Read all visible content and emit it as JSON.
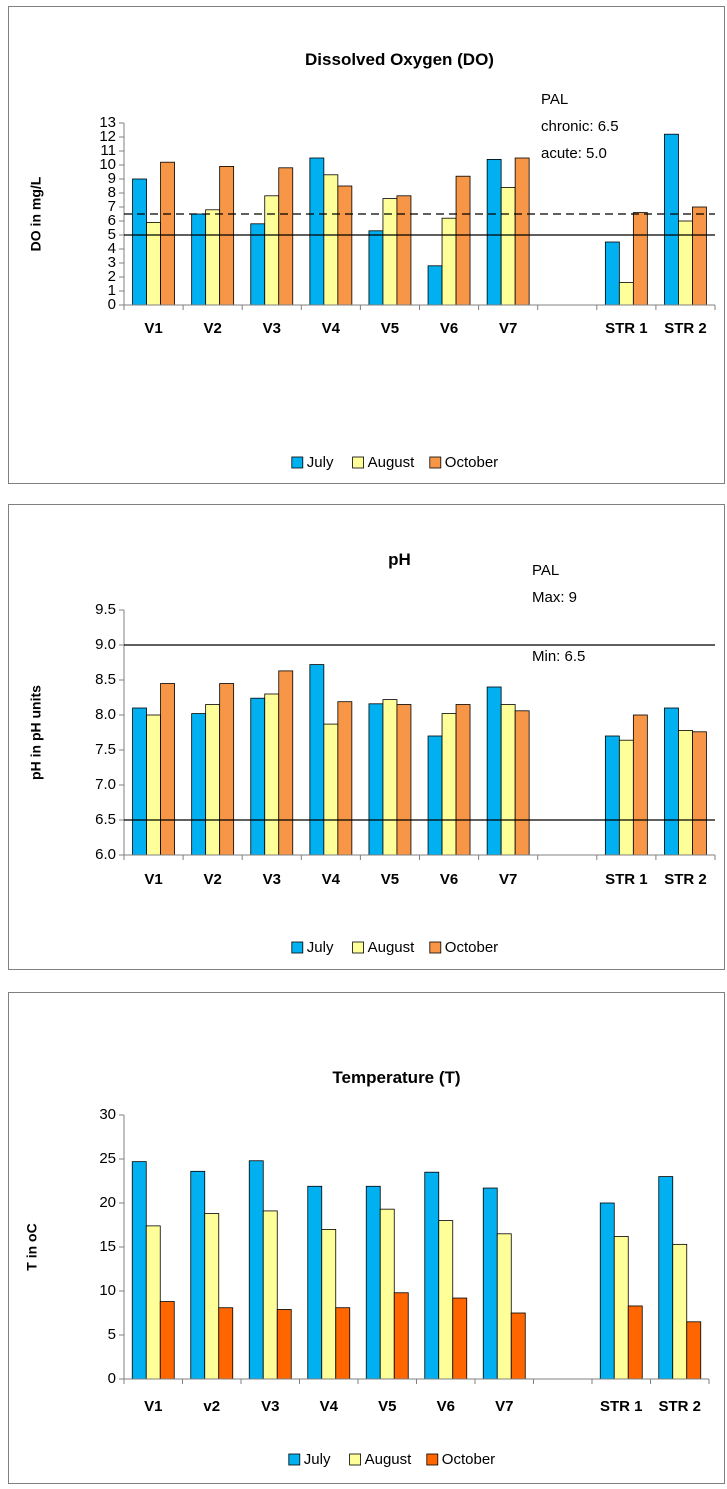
{
  "chart_data": [
    {
      "type": "bar",
      "title": "Dissolved Oxygen (DO)",
      "xlabel": "",
      "ylabel": "DO in mg/L",
      "categories": [
        "V1",
        "V2",
        "V3",
        "V4",
        "V5",
        "V6",
        "V7",
        "",
        "STR 1",
        "STR 2"
      ],
      "ylim": [
        0,
        13
      ],
      "yticks": [
        "0",
        "1",
        "2",
        "3",
        "4",
        "5",
        "6",
        "7",
        "8",
        "9",
        "10",
        "11",
        "12",
        "13"
      ],
      "series": [
        {
          "name": "July",
          "color": "#00B0F0",
          "values": [
            9.0,
            6.5,
            5.8,
            10.5,
            5.3,
            2.8,
            10.4,
            null,
            4.5,
            12.2
          ]
        },
        {
          "name": "August",
          "color": "#FFFF99",
          "values": [
            5.9,
            6.8,
            7.8,
            9.3,
            7.6,
            6.2,
            8.4,
            null,
            1.6,
            6.0
          ]
        },
        {
          "name": "October",
          "color": "#F79646",
          "values": [
            10.2,
            9.9,
            9.8,
            8.5,
            7.8,
            9.2,
            10.5,
            null,
            6.6,
            7.0
          ]
        }
      ],
      "reference_lines": [
        {
          "value": 6.5,
          "style": "dashed",
          "label": "chronic: 6.5"
        },
        {
          "value": 5.0,
          "style": "solid",
          "label": "acute: 5.0"
        }
      ],
      "annotations": [
        "PAL"
      ],
      "legend": "bottom",
      "grid": false
    },
    {
      "type": "bar",
      "title": "pH",
      "xlabel": "",
      "ylabel": "pH in pH units",
      "categories": [
        "V1",
        "V2",
        "V3",
        "V4",
        "V5",
        "V6",
        "V7",
        "",
        "STR 1",
        "STR 2"
      ],
      "ylim": [
        6.0,
        9.5
      ],
      "yticks": [
        "6.0",
        "6.5",
        "7.0",
        "7.5",
        "8.0",
        "8.5",
        "9.0",
        "9.5"
      ],
      "series": [
        {
          "name": "July",
          "color": "#00B0F0",
          "values": [
            8.1,
            8.02,
            8.24,
            8.72,
            8.16,
            7.7,
            8.4,
            null,
            7.7,
            8.1
          ]
        },
        {
          "name": "August",
          "color": "#FFFF99",
          "values": [
            8.0,
            8.15,
            8.3,
            7.87,
            8.22,
            8.02,
            8.15,
            null,
            7.64,
            7.78
          ]
        },
        {
          "name": "October",
          "color": "#F79646",
          "values": [
            8.45,
            8.45,
            8.63,
            8.19,
            8.15,
            8.15,
            8.06,
            null,
            8.0,
            7.76
          ]
        }
      ],
      "reference_lines": [
        {
          "value": 9.0,
          "style": "solid",
          "label": "Max: 9"
        },
        {
          "value": 6.5,
          "style": "solid",
          "label": "Min: 6.5"
        }
      ],
      "annotations": [
        "PAL"
      ],
      "legend": "bottom",
      "grid": false
    },
    {
      "type": "bar",
      "title": "Temperature (T)",
      "xlabel": "",
      "ylabel": "T in oC",
      "categories": [
        "V1",
        "v2",
        "V3",
        "V4",
        "V5",
        "V6",
        "V7",
        "",
        "STR 1",
        "STR 2"
      ],
      "ylim": [
        0,
        30
      ],
      "yticks": [
        "0",
        "5",
        "10",
        "15",
        "20",
        "25",
        "30"
      ],
      "series": [
        {
          "name": "July",
          "color": "#00B0F0",
          "values": [
            24.7,
            23.6,
            24.8,
            21.9,
            21.9,
            23.5,
            21.7,
            null,
            20.0,
            23.0
          ]
        },
        {
          "name": "August",
          "color": "#FFFF99",
          "values": [
            17.4,
            18.8,
            19.1,
            17.0,
            19.3,
            18.0,
            16.5,
            null,
            16.2,
            15.3
          ]
        },
        {
          "name": "October",
          "color": "#FF6600",
          "values": [
            8.8,
            8.1,
            7.9,
            8.1,
            9.8,
            9.2,
            7.5,
            null,
            8.3,
            6.5
          ]
        }
      ],
      "reference_lines": [],
      "annotations": [],
      "legend": "bottom",
      "grid": false
    }
  ]
}
